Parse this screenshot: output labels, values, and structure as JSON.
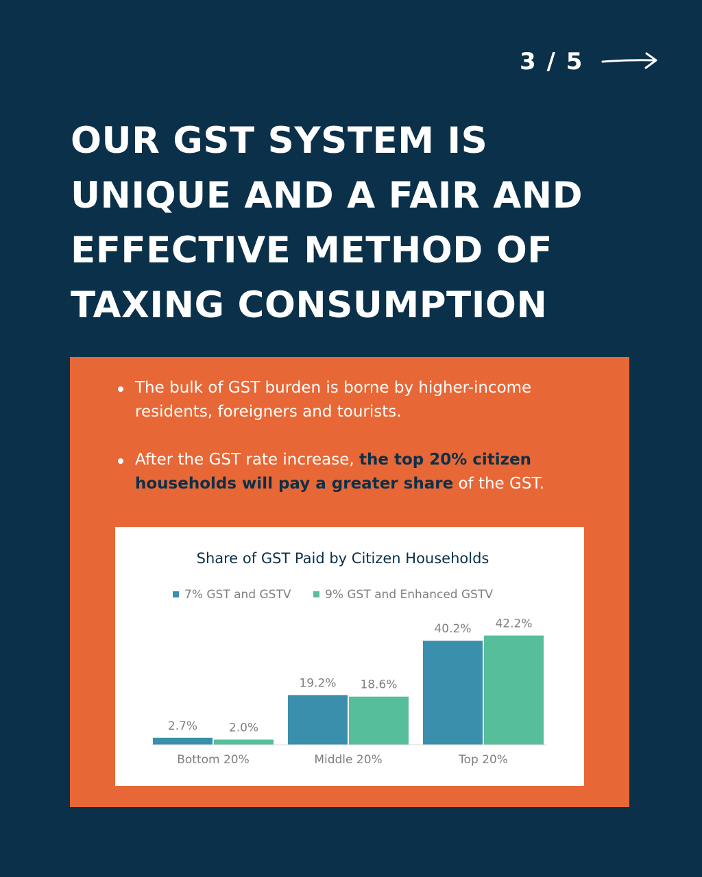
{
  "pager": {
    "text": "3 / 5"
  },
  "headline": {
    "lines": [
      "OUR GST SYSTEM IS",
      "UNIQUE AND A FAIR AND",
      "EFFECTIVE METHOD OF",
      "TAXING CONSUMPTION"
    ]
  },
  "bullets": [
    {
      "text": "The bulk of GST burden is borne by higher-income residents, foreigners and tourists."
    },
    {
      "pre": "After the GST rate increase, ",
      "emphasis": "the top 20% citizen households will pay a greater share",
      "post": " of the GST."
    }
  ],
  "colors": {
    "background": "#0b3049",
    "panel": "#e86736",
    "series1": "#3a8fad",
    "series2": "#56be9b"
  },
  "chart_data": {
    "type": "bar",
    "title": "Share of GST Paid by Citizen Households",
    "categories": [
      "Bottom 20%",
      "Middle 20%",
      "Top 20%"
    ],
    "series": [
      {
        "name": "7% GST and GSTV",
        "values": [
          2.7,
          19.2,
          40.2
        ],
        "labels": [
          "2.7%",
          "19.2%",
          "40.2%"
        ],
        "color": "#3a8fad"
      },
      {
        "name": "9% GST and Enhanced GSTV",
        "values": [
          2.0,
          18.6,
          42.2
        ],
        "labels": [
          "2.0%",
          "18.6%",
          "42.2%"
        ],
        "color": "#56be9b"
      }
    ],
    "ylim": [
      0,
      50
    ],
    "grid": false,
    "legend": "top-center"
  }
}
